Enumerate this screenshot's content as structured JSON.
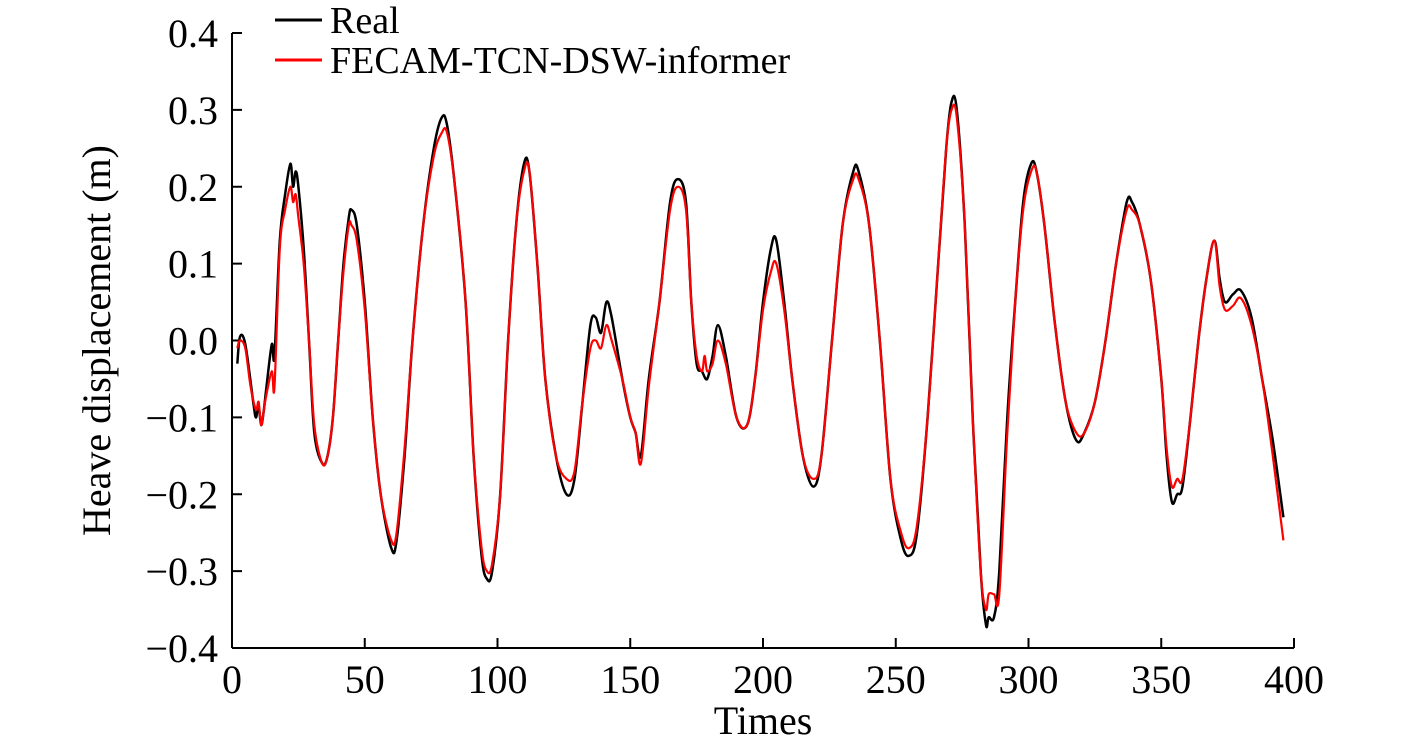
{
  "chart_data": {
    "type": "line",
    "xlabel": "Times",
    "ylabel": "Heave displacement (m)",
    "xlim": [
      0,
      400
    ],
    "ylim": [
      -0.4,
      0.4
    ],
    "x_ticks": [
      0,
      50,
      100,
      150,
      200,
      250,
      300,
      350,
      400
    ],
    "x_tick_labels": [
      "0",
      "50",
      "100",
      "150",
      "200",
      "250",
      "300",
      "350",
      "400"
    ],
    "y_ticks": [
      -0.4,
      -0.3,
      -0.2,
      -0.1,
      0.0,
      0.1,
      0.2,
      0.3,
      0.4
    ],
    "y_tick_labels": [
      "−0.4",
      "−0.3",
      "−0.2",
      "−0.1",
      "0.0",
      "0.1",
      "0.2",
      "0.3",
      "0.4"
    ],
    "grid": false,
    "legend_position": "top-left",
    "series": [
      {
        "name": "Real",
        "color": "#000000",
        "points": [
          [
            2,
            -0.03
          ],
          [
            3,
            0.005
          ],
          [
            5,
            -0.005
          ],
          [
            8,
            -0.08
          ],
          [
            9,
            -0.1
          ],
          [
            10,
            -0.085
          ],
          [
            11,
            -0.11
          ],
          [
            12,
            -0.09
          ],
          [
            13,
            -0.06
          ],
          [
            15,
            -0.005
          ],
          [
            16,
            -0.02
          ],
          [
            18,
            0.13
          ],
          [
            20,
            0.19
          ],
          [
            22,
            0.23
          ],
          [
            23,
            0.2
          ],
          [
            24,
            0.22
          ],
          [
            25,
            0.2
          ],
          [
            27,
            0.12
          ],
          [
            29,
            0.0
          ],
          [
            31,
            -0.12
          ],
          [
            34,
            -0.16
          ],
          [
            36,
            -0.15
          ],
          [
            38,
            -0.1
          ],
          [
            40,
            0.0
          ],
          [
            42,
            0.1
          ],
          [
            44,
            0.16
          ],
          [
            45,
            0.17
          ],
          [
            47,
            0.15
          ],
          [
            50,
            0.05
          ],
          [
            53,
            -0.1
          ],
          [
            56,
            -0.2
          ],
          [
            60,
            -0.27
          ],
          [
            62,
            -0.26
          ],
          [
            65,
            -0.15
          ],
          [
            68,
            0.0
          ],
          [
            72,
            0.15
          ],
          [
            76,
            0.25
          ],
          [
            79,
            0.29
          ],
          [
            81,
            0.28
          ],
          [
            84,
            0.2
          ],
          [
            88,
            0.05
          ],
          [
            91,
            -0.15
          ],
          [
            94,
            -0.28
          ],
          [
            96,
            -0.31
          ],
          [
            98,
            -0.3
          ],
          [
            101,
            -0.2
          ],
          [
            104,
            0.0
          ],
          [
            107,
            0.15
          ],
          [
            110,
            0.23
          ],
          [
            112,
            0.22
          ],
          [
            115,
            0.1
          ],
          [
            118,
            -0.05
          ],
          [
            122,
            -0.15
          ],
          [
            126,
            -0.2
          ],
          [
            129,
            -0.18
          ],
          [
            132,
            -0.08
          ],
          [
            135,
            0.02
          ],
          [
            137,
            0.03
          ],
          [
            139,
            0.01
          ],
          [
            141,
            0.05
          ],
          [
            143,
            0.03
          ],
          [
            147,
            -0.05
          ],
          [
            150,
            -0.1
          ],
          [
            152,
            -0.12
          ],
          [
            154,
            -0.15
          ],
          [
            157,
            -0.05
          ],
          [
            161,
            0.05
          ],
          [
            165,
            0.18
          ],
          [
            168,
            0.21
          ],
          [
            171,
            0.18
          ],
          [
            173,
            0.05
          ],
          [
            175,
            -0.03
          ],
          [
            177,
            -0.04
          ],
          [
            179,
            -0.05
          ],
          [
            181,
            -0.02
          ],
          [
            183,
            0.02
          ],
          [
            186,
            -0.02
          ],
          [
            190,
            -0.1
          ],
          [
            194,
            -0.11
          ],
          [
            197,
            -0.05
          ],
          [
            200,
            0.05
          ],
          [
            203,
            0.12
          ],
          [
            205,
            0.13
          ],
          [
            208,
            0.05
          ],
          [
            211,
            -0.05
          ],
          [
            215,
            -0.15
          ],
          [
            219,
            -0.19
          ],
          [
            222,
            -0.15
          ],
          [
            226,
            0.0
          ],
          [
            230,
            0.15
          ],
          [
            234,
            0.22
          ],
          [
            236,
            0.22
          ],
          [
            240,
            0.15
          ],
          [
            244,
            0.0
          ],
          [
            248,
            -0.18
          ],
          [
            252,
            -0.26
          ],
          [
            255,
            -0.28
          ],
          [
            258,
            -0.25
          ],
          [
            262,
            -0.1
          ],
          [
            266,
            0.1
          ],
          [
            269,
            0.25
          ],
          [
            271,
            0.31
          ],
          [
            273,
            0.3
          ],
          [
            276,
            0.15
          ],
          [
            279,
            -0.1
          ],
          [
            282,
            -0.3
          ],
          [
            284,
            -0.37
          ],
          [
            285,
            -0.36
          ],
          [
            287,
            -0.36
          ],
          [
            289,
            -0.3
          ],
          [
            292,
            -0.1
          ],
          [
            295,
            0.05
          ],
          [
            298,
            0.18
          ],
          [
            301,
            0.23
          ],
          [
            303,
            0.22
          ],
          [
            306,
            0.15
          ],
          [
            310,
            0.02
          ],
          [
            314,
            -0.08
          ],
          [
            318,
            -0.13
          ],
          [
            321,
            -0.12
          ],
          [
            325,
            -0.08
          ],
          [
            329,
            0.0
          ],
          [
            333,
            0.1
          ],
          [
            337,
            0.18
          ],
          [
            339,
            0.18
          ],
          [
            342,
            0.15
          ],
          [
            346,
            0.08
          ],
          [
            350,
            -0.05
          ],
          [
            352,
            -0.15
          ],
          [
            354,
            -0.21
          ],
          [
            356,
            -0.2
          ],
          [
            358,
            -0.19
          ],
          [
            361,
            -0.1
          ],
          [
            364,
            0.0
          ],
          [
            367,
            0.08
          ],
          [
            370,
            0.13
          ],
          [
            372,
            0.08
          ],
          [
            374,
            0.05
          ],
          [
            377,
            0.06
          ],
          [
            380,
            0.065
          ],
          [
            384,
            0.03
          ],
          [
            388,
            -0.05
          ],
          [
            392,
            -0.13
          ],
          [
            396,
            -0.23
          ]
        ]
      },
      {
        "name": "FECAM-TCN-DSW-informer",
        "color": "#ff0000",
        "points": [
          [
            2,
            -0.01
          ],
          [
            3,
            0.0
          ],
          [
            5,
            -0.01
          ],
          [
            7,
            -0.06
          ],
          [
            9,
            -0.09
          ],
          [
            10,
            -0.08
          ],
          [
            11,
            -0.11
          ],
          [
            12,
            -0.09
          ],
          [
            13,
            -0.07
          ],
          [
            15,
            -0.04
          ],
          [
            16,
            -0.06
          ],
          [
            18,
            0.12
          ],
          [
            20,
            0.17
          ],
          [
            22,
            0.2
          ],
          [
            23,
            0.18
          ],
          [
            24,
            0.19
          ],
          [
            25,
            0.16
          ],
          [
            27,
            0.1
          ],
          [
            29,
            0.0
          ],
          [
            31,
            -0.11
          ],
          [
            34,
            -0.16
          ],
          [
            36,
            -0.15
          ],
          [
            38,
            -0.1
          ],
          [
            40,
            0.0
          ],
          [
            42,
            0.09
          ],
          [
            44,
            0.15
          ],
          [
            45,
            0.15
          ],
          [
            47,
            0.13
          ],
          [
            50,
            0.04
          ],
          [
            53,
            -0.1
          ],
          [
            56,
            -0.2
          ],
          [
            60,
            -0.26
          ],
          [
            62,
            -0.25
          ],
          [
            65,
            -0.14
          ],
          [
            68,
            0.0
          ],
          [
            72,
            0.15
          ],
          [
            76,
            0.24
          ],
          [
            79,
            0.27
          ],
          [
            81,
            0.27
          ],
          [
            84,
            0.2
          ],
          [
            88,
            0.05
          ],
          [
            91,
            -0.15
          ],
          [
            94,
            -0.27
          ],
          [
            96,
            -0.3
          ],
          [
            98,
            -0.29
          ],
          [
            101,
            -0.2
          ],
          [
            104,
            0.0
          ],
          [
            107,
            0.15
          ],
          [
            110,
            0.22
          ],
          [
            112,
            0.22
          ],
          [
            115,
            0.1
          ],
          [
            118,
            -0.05
          ],
          [
            122,
            -0.15
          ],
          [
            126,
            -0.18
          ],
          [
            129,
            -0.17
          ],
          [
            132,
            -0.08
          ],
          [
            135,
            -0.01
          ],
          [
            137,
            0.0
          ],
          [
            139,
            -0.01
          ],
          [
            141,
            0.02
          ],
          [
            143,
            0.0
          ],
          [
            147,
            -0.05
          ],
          [
            150,
            -0.1
          ],
          [
            152,
            -0.12
          ],
          [
            154,
            -0.16
          ],
          [
            157,
            -0.06
          ],
          [
            161,
            0.05
          ],
          [
            165,
            0.17
          ],
          [
            168,
            0.2
          ],
          [
            171,
            0.17
          ],
          [
            173,
            0.05
          ],
          [
            175,
            -0.02
          ],
          [
            177,
            -0.04
          ],
          [
            178,
            -0.02
          ],
          [
            179,
            -0.04
          ],
          [
            181,
            -0.03
          ],
          [
            183,
            0.0
          ],
          [
            186,
            -0.03
          ],
          [
            190,
            -0.1
          ],
          [
            194,
            -0.11
          ],
          [
            197,
            -0.05
          ],
          [
            200,
            0.04
          ],
          [
            203,
            0.09
          ],
          [
            205,
            0.1
          ],
          [
            208,
            0.04
          ],
          [
            211,
            -0.05
          ],
          [
            215,
            -0.15
          ],
          [
            219,
            -0.18
          ],
          [
            222,
            -0.15
          ],
          [
            226,
            0.0
          ],
          [
            230,
            0.15
          ],
          [
            234,
            0.21
          ],
          [
            236,
            0.21
          ],
          [
            240,
            0.15
          ],
          [
            244,
            0.0
          ],
          [
            248,
            -0.18
          ],
          [
            252,
            -0.25
          ],
          [
            255,
            -0.27
          ],
          [
            258,
            -0.24
          ],
          [
            262,
            -0.1
          ],
          [
            266,
            0.1
          ],
          [
            269,
            0.25
          ],
          [
            271,
            0.3
          ],
          [
            273,
            0.29
          ],
          [
            276,
            0.15
          ],
          [
            279,
            -0.1
          ],
          [
            282,
            -0.3
          ],
          [
            284,
            -0.35
          ],
          [
            285,
            -0.33
          ],
          [
            287,
            -0.33
          ],
          [
            289,
            -0.33
          ],
          [
            292,
            -0.12
          ],
          [
            295,
            0.05
          ],
          [
            298,
            0.17
          ],
          [
            301,
            0.22
          ],
          [
            303,
            0.22
          ],
          [
            306,
            0.15
          ],
          [
            310,
            0.02
          ],
          [
            314,
            -0.08
          ],
          [
            318,
            -0.12
          ],
          [
            321,
            -0.12
          ],
          [
            325,
            -0.08
          ],
          [
            329,
            0.0
          ],
          [
            333,
            0.1
          ],
          [
            337,
            0.17
          ],
          [
            339,
            0.17
          ],
          [
            342,
            0.15
          ],
          [
            346,
            0.08
          ],
          [
            350,
            -0.05
          ],
          [
            352,
            -0.14
          ],
          [
            354,
            -0.19
          ],
          [
            356,
            -0.18
          ],
          [
            358,
            -0.18
          ],
          [
            361,
            -0.1
          ],
          [
            364,
            0.0
          ],
          [
            367,
            0.08
          ],
          [
            370,
            0.13
          ],
          [
            372,
            0.07
          ],
          [
            374,
            0.04
          ],
          [
            377,
            0.045
          ],
          [
            380,
            0.055
          ],
          [
            384,
            0.02
          ],
          [
            388,
            -0.05
          ],
          [
            392,
            -0.15
          ],
          [
            396,
            -0.26
          ]
        ]
      }
    ]
  }
}
